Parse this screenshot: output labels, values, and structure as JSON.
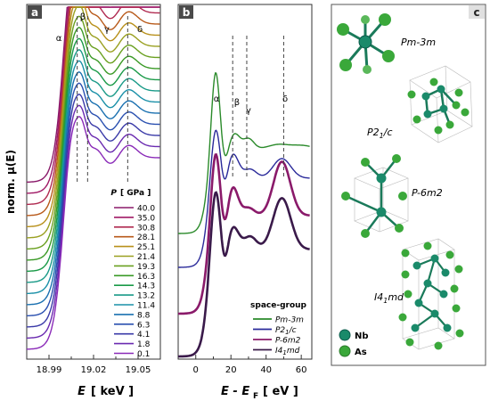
{
  "panel_letters": {
    "a": "a",
    "b": "b",
    "c": "c"
  },
  "chart_data": [
    {
      "type": "line",
      "panel": "a",
      "xlabel_var": "E",
      "xlabel_unit": "[ keV ]",
      "ylabel": "norm. μ(E)",
      "xlim": [
        18.975,
        19.065
      ],
      "xticks": [
        "18.99",
        "19.02",
        "19.05"
      ],
      "peak_labels": [
        "α",
        "β",
        "γ",
        "δ"
      ],
      "legend_title_var": "P",
      "legend_title_unit": "[ GPa ]",
      "pressures": [
        40.0,
        35.0,
        30.8,
        28.1,
        25.1,
        21.4,
        19.3,
        16.3,
        14.3,
        13.2,
        11.4,
        8.8,
        6.3,
        4.1,
        1.8,
        0.1
      ],
      "pressure_labels": [
        "40.0",
        "35.0",
        "30.8",
        "28.1",
        "25.1",
        "21.4",
        "19.3",
        "16.3",
        "14.3",
        "13.2",
        "11.4",
        "8.8",
        "6.3",
        "4.1",
        "1.8",
        "0.1"
      ],
      "series_colors": [
        "#8a1a6a",
        "#a01a66",
        "#b02a50",
        "#b85a1a",
        "#b8901a",
        "#9aa020",
        "#6aa020",
        "#3a9a26",
        "#1a9a48",
        "#1a9a88",
        "#1a90a8",
        "#1a70b0",
        "#2a50b0",
        "#3a3aa8",
        "#6a2ab0",
        "#8a2ab8"
      ]
    },
    {
      "type": "line",
      "panel": "b",
      "xlabel_var": "E - E",
      "xlabel_sub": "F",
      "xlabel_unit": "[ eV ]",
      "xlim": [
        -10,
        66
      ],
      "xticks": [
        "0",
        "20",
        "40",
        "60"
      ],
      "peak_labels": [
        "α",
        "β",
        "γ",
        "δ"
      ],
      "legend_title": "space-group",
      "series": [
        {
          "name": "Pm-3m",
          "color": "#2a8a2a"
        },
        {
          "name": "P21/c",
          "color": "#2a2a9a"
        },
        {
          "name": "P-6m2",
          "color": "#8a1a6a"
        },
        {
          "name": "I41md",
          "color": "#3a1a4a"
        }
      ]
    }
  ],
  "panel_c": {
    "phases": [
      "Pm-3m",
      "P21/c",
      "P-6m2",
      "I41md"
    ],
    "legend": [
      {
        "label": "Nb",
        "color": "#1a8a6a"
      },
      {
        "label": "As",
        "color": "#3aa83a"
      }
    ]
  }
}
